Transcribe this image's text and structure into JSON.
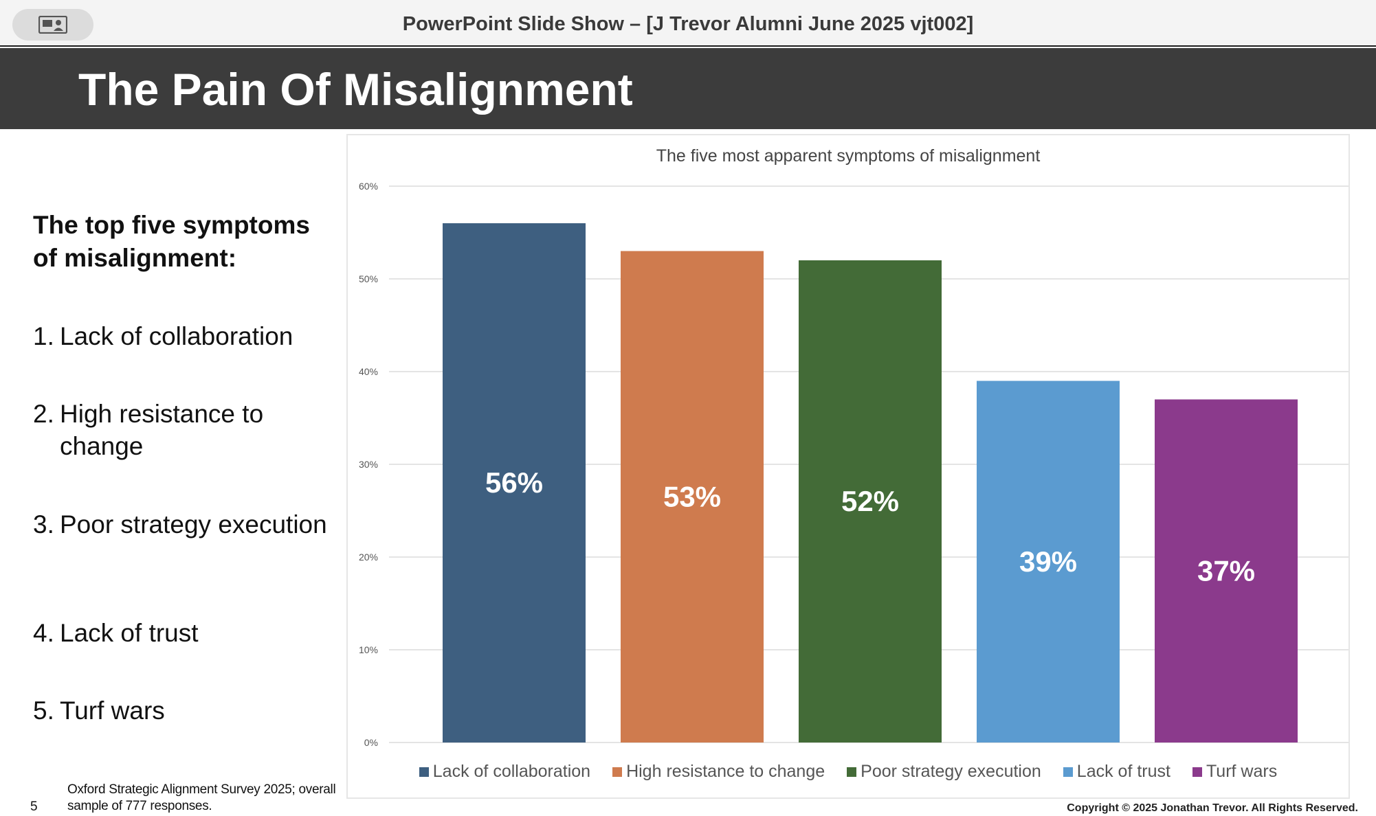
{
  "window": {
    "title": "PowerPoint Slide Show – [J Trevor Alumni June 2025 vjt002]",
    "presenter_button_icon": "presenter-view-icon"
  },
  "slide": {
    "title": "The Pain Of Misalignment",
    "number": "5",
    "left_panel": {
      "heading": "The top five symptoms of misalignment:",
      "items": [
        {
          "num": "1.",
          "text": "Lack of collaboration"
        },
        {
          "num": "2.",
          "text": "High resistance to change"
        },
        {
          "num": "3.",
          "text": "Poor strategy execution"
        },
        {
          "num": "4.",
          "text": "Lack of trust"
        },
        {
          "num": "5.",
          "text": "Turf wars"
        }
      ]
    },
    "source_note": "Oxford Strategic Alignment Survey 2025; overall sample of 777 responses.",
    "copyright": "Copyright © 2025 Jonathan Trevor. All Rights Reserved."
  },
  "chart_data": {
    "type": "bar",
    "title": "The five most apparent symptoms of misalignment",
    "categories": [
      "Lack of collaboration",
      "High resistance to change",
      "Poor strategy execution",
      "Lack of trust",
      "Turf wars"
    ],
    "values": [
      56,
      53,
      52,
      39,
      37
    ],
    "value_labels": [
      "56%",
      "53%",
      "52%",
      "39%",
      "37%"
    ],
    "colors": [
      "#3e5f80",
      "#cf7b4e",
      "#436b37",
      "#5b9bd0",
      "#8b3a8c"
    ],
    "ylim": [
      0,
      60
    ],
    "yticks": [
      0,
      10,
      20,
      30,
      40,
      50,
      60
    ],
    "ytick_labels": [
      "0%",
      "10%",
      "20%",
      "30%",
      "40%",
      "50%",
      "60%"
    ],
    "xlabel": "",
    "ylabel": "",
    "grid": true,
    "legend_position": "bottom"
  }
}
